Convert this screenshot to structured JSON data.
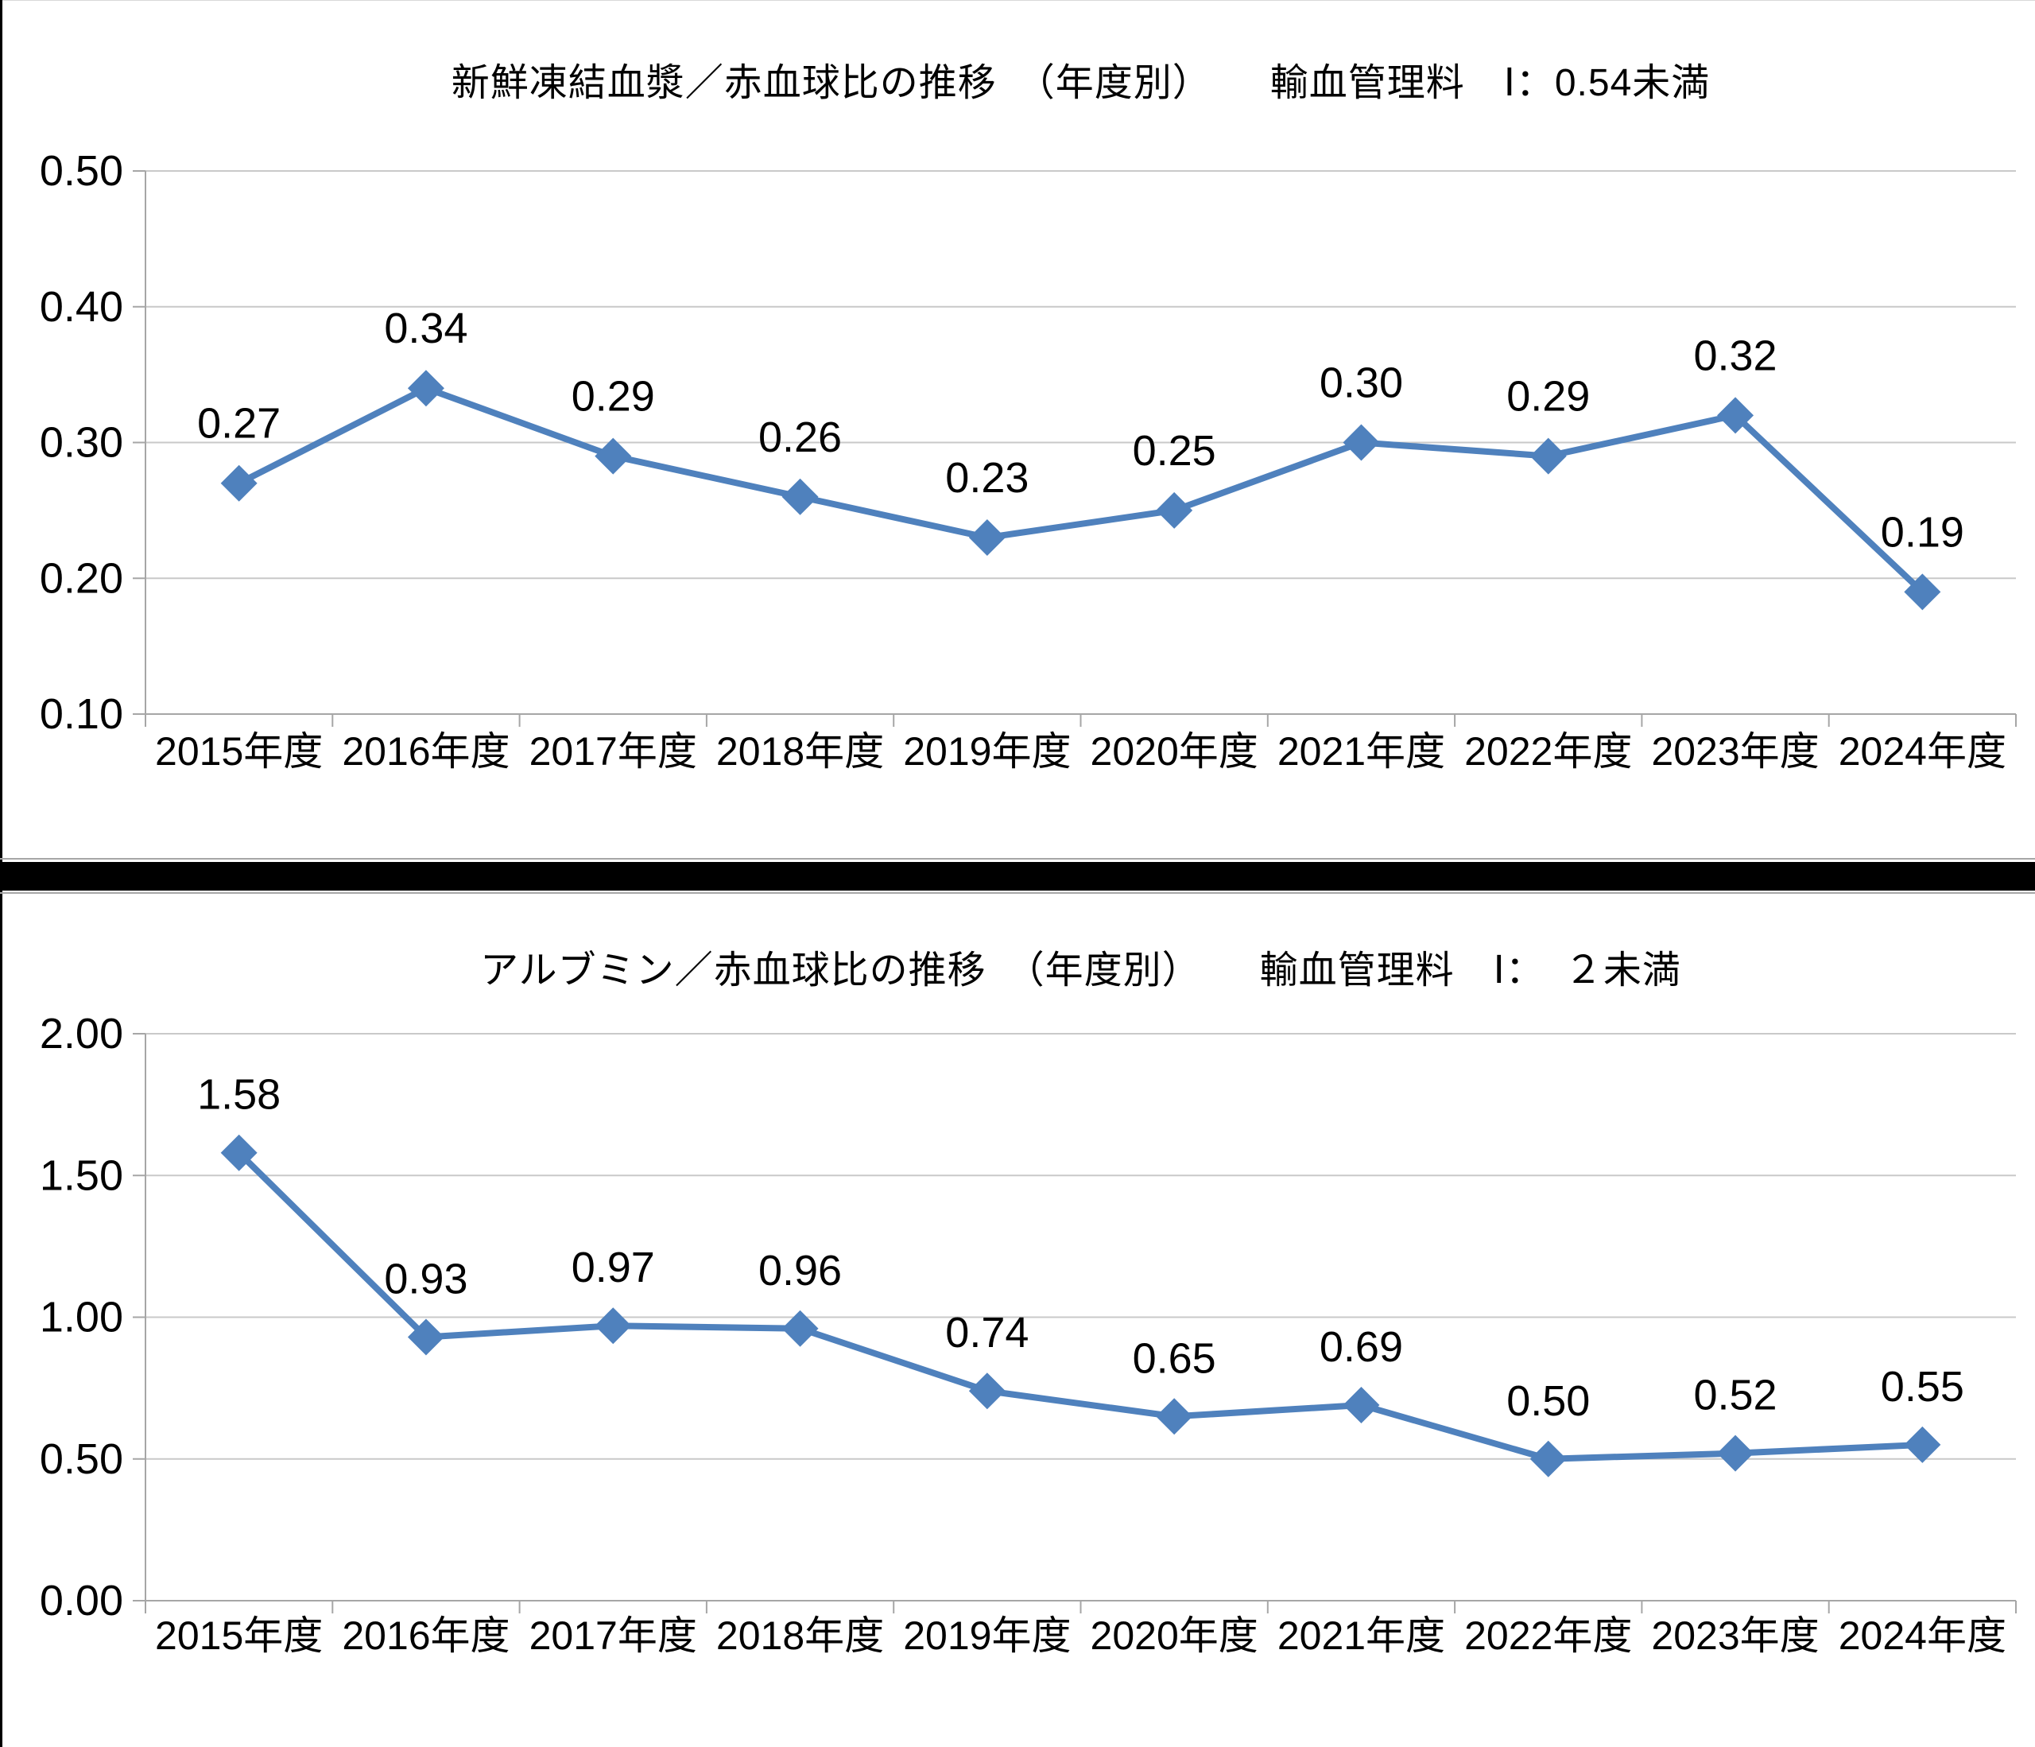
{
  "page": {
    "background": "#ffffff",
    "left_border_color": "#000000",
    "top_border_color": "#d9d9d9"
  },
  "separator": {
    "bar_color": "#000000",
    "edge_color": "#a6a6a6"
  },
  "style": {
    "line_color": "#4F81BD",
    "marker_color": "#4F81BD",
    "grid_color": "#c9c9c9",
    "axis_color": "#a6a6a6",
    "label_color": "#000000",
    "title_color": "#000000"
  },
  "chart_data": [
    {
      "type": "line",
      "title": "新鮮凍結血漿／赤血球比の推移　（年度別）　　輸血管理料　Ⅰ：0.54未満",
      "categories": [
        "2015年度",
        "2016年度",
        "2017年度",
        "2018年度",
        "2019年度",
        "2020年度",
        "2021年度",
        "2022年度",
        "2023年度",
        "2024年度"
      ],
      "series": [
        {
          "values": [
            0.27,
            0.34,
            0.29,
            0.26,
            0.23,
            0.25,
            0.3,
            0.29,
            0.32,
            0.19
          ]
        }
      ],
      "data_labels": [
        "0.27",
        "0.34",
        "0.29",
        "0.26",
        "0.23",
        "0.25",
        "0.30",
        "0.29",
        "0.32",
        "0.19"
      ],
      "ylim": [
        0.1,
        0.5
      ],
      "ytick_values": [
        0.5,
        0.4,
        0.3,
        0.2,
        0.1
      ],
      "ytick_labels": [
        "0.50",
        "0.40",
        "0.30",
        "0.20",
        "0.10"
      ],
      "grid": true,
      "legend": "none",
      "marker": "diamond"
    },
    {
      "type": "line",
      "title": "アルブミン／赤血球比の推移　（年度別）　　輸血管理料　Ⅰ：　２未満",
      "categories": [
        "2015年度",
        "2016年度",
        "2017年度",
        "2018年度",
        "2019年度",
        "2020年度",
        "2021年度",
        "2022年度",
        "2023年度",
        "2024年度"
      ],
      "series": [
        {
          "values": [
            1.58,
            0.93,
            0.97,
            0.96,
            0.74,
            0.65,
            0.69,
            0.5,
            0.52,
            0.55
          ]
        }
      ],
      "data_labels": [
        "1.58",
        "0.93",
        "0.97",
        "0.96",
        "0.74",
        "0.65",
        "0.69",
        "0.50",
        "0.52",
        "0.55"
      ],
      "ylim": [
        0.0,
        2.0
      ],
      "ytick_values": [
        2.0,
        1.5,
        1.0,
        0.5,
        0.0
      ],
      "ytick_labels": [
        "2.00",
        "1.50",
        "1.00",
        "0.50",
        "0.00"
      ],
      "grid": true,
      "legend": "none",
      "marker": "diamond"
    }
  ]
}
